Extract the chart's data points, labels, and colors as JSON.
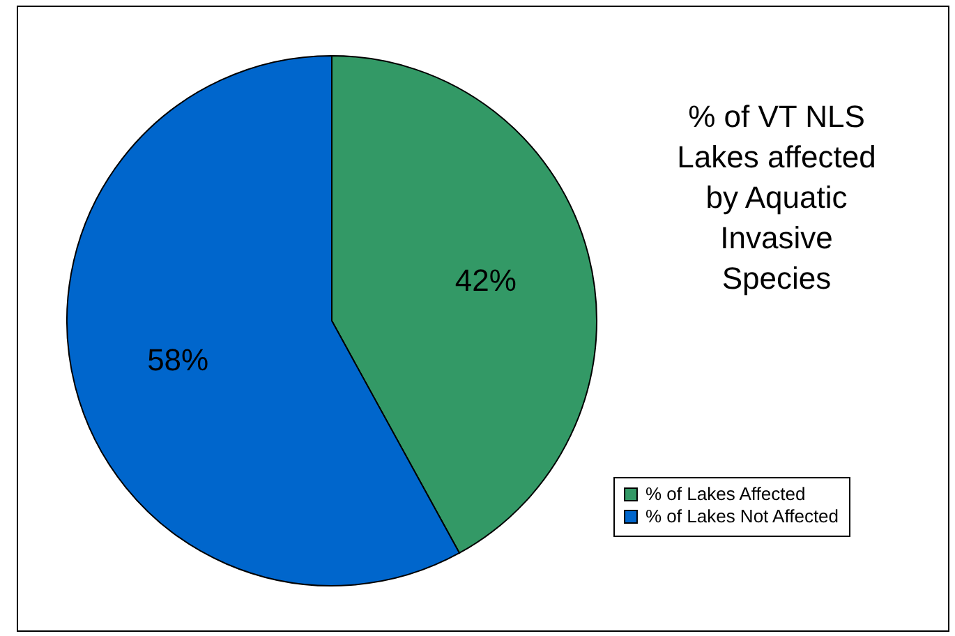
{
  "chart_data": {
    "type": "pie",
    "title": "% of VT NLS Lakes affected by Aquatic Invasive Species",
    "categories": [
      "% of Lakes Affected",
      "% of Lakes Not Affected"
    ],
    "values": [
      42,
      58
    ],
    "colors": [
      "#339966",
      "#0066cc"
    ],
    "value_labels": [
      "42%",
      "58%"
    ],
    "legend": "bottom right"
  }
}
